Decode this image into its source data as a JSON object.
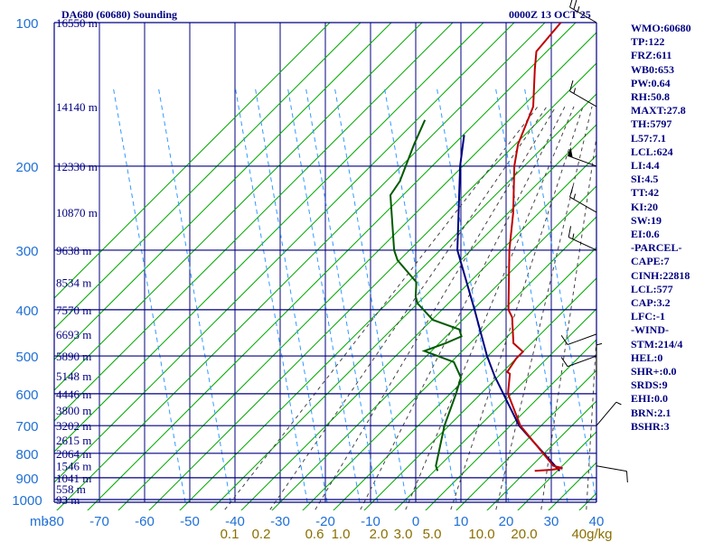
{
  "title_left": "DA680 (60680) Sounding",
  "title_right": "0000Z 13 OCT 25",
  "indices": [
    "WMO:60680",
    "TP:122",
    "FRZ:611",
    "WB0:653",
    "PW:0.64",
    "RH:50.8",
    "MAXT:27.8",
    "TH:5797",
    "L57:7.1",
    "LCL:624",
    "LI:4.4",
    "SI:4.5",
    "TT:42",
    "KI:20",
    "SW:19",
    "EI:0.6",
    "-PARCEL-",
    "CAPE:7",
    "CINH:22818",
    "LCL:577",
    "CAP:3.2",
    "LFC:-1",
    "-WIND-",
    "STM:214/4",
    "HEL:0",
    "SHR+:0.0",
    "SRDS:9",
    "EHI:0.0",
    "BRN:2.1",
    "BSHR:3"
  ],
  "colors": {
    "temperature": "#c00000",
    "dewpoint": "#005a00",
    "parcel": "#000080",
    "isobar": "#000080",
    "dry_adiabat": "#00aa00",
    "moist_adiabat": "#444444",
    "mixing_ratio": "#3399ff",
    "axis_text": "#1f6fd6",
    "mix_text": "#8b6f00"
  },
  "chart_data": {
    "type": "skew-t",
    "title": "DA680 (60680) Sounding",
    "xlabel": "mb",
    "pressure_levels": [
      100,
      200,
      300,
      400,
      500,
      600,
      700,
      800,
      900,
      1000
    ],
    "pressure_labels": [
      "100",
      "200",
      "300",
      "400",
      "500",
      "600",
      "700",
      "800",
      "900",
      "1000"
    ],
    "temperature_ticks": [
      -80,
      -70,
      -60,
      -50,
      -40,
      -30,
      -20,
      -10,
      0,
      10,
      20,
      30,
      40
    ],
    "temperature_tick_labels": [
      "-80",
      "-70",
      "-60",
      "-50",
      "-40",
      "-30",
      "-20",
      "-10",
      "0",
      "10",
      "20",
      "30",
      "40"
    ],
    "height_labels": [
      {
        "p": 100,
        "text": "16550 m"
      },
      {
        "p": 150,
        "text": "14140 m"
      },
      {
        "p": 200,
        "text": "12330 m"
      },
      {
        "p": 250,
        "text": "10870 m"
      },
      {
        "p": 300,
        "text": "9638 m"
      },
      {
        "p": 350,
        "text": "8534 m"
      },
      {
        "p": 400,
        "text": "7570 m"
      },
      {
        "p": 450,
        "text": "6693 m"
      },
      {
        "p": 500,
        "text": "5890 m"
      },
      {
        "p": 550,
        "text": "5148 m"
      },
      {
        "p": 600,
        "text": "4446 m"
      },
      {
        "p": 650,
        "text": "3800 m"
      },
      {
        "p": 700,
        "text": "3202 m"
      },
      {
        "p": 750,
        "text": "2615 m"
      },
      {
        "p": 800,
        "text": "2064 m"
      },
      {
        "p": 850,
        "text": "1546 m"
      },
      {
        "p": 900,
        "text": "1041 m"
      },
      {
        "p": 950,
        "text": "558 m"
      },
      {
        "p": 1000,
        "text": "93 m"
      }
    ],
    "mixing_ratio_labels": [
      "0.1",
      "0.2",
      "0.6",
      "1.0",
      "2.0",
      "3.0",
      "5.0",
      "10.0",
      "20.0",
      "40g/kg"
    ],
    "mixing_ratio_values": [
      0.1,
      0.2,
      0.6,
      1.0,
      2.0,
      3.0,
      5.0,
      10.0,
      20.0,
      40.0
    ],
    "temperature_profile": [
      {
        "p": 871,
        "t": 20.0
      },
      {
        "p": 866,
        "t": 23.5
      },
      {
        "p": 859,
        "t": 25.5
      },
      {
        "p": 850,
        "t": 23.0
      },
      {
        "p": 700,
        "t": 6.8
      },
      {
        "p": 600,
        "t": -3.0
      },
      {
        "p": 545,
        "t": -7.0
      },
      {
        "p": 540,
        "t": -8.0
      },
      {
        "p": 506,
        "t": -9.0
      },
      {
        "p": 490,
        "t": -9.0
      },
      {
        "p": 470,
        "t": -13.0
      },
      {
        "p": 415,
        "t": -19.0
      },
      {
        "p": 400,
        "t": -21.5
      },
      {
        "p": 300,
        "t": -34.5
      },
      {
        "p": 250,
        "t": -42.0
      },
      {
        "p": 200,
        "t": -52.0
      },
      {
        "p": 180,
        "t": -56.0
      },
      {
        "p": 150,
        "t": -61.0
      },
      {
        "p": 125,
        "t": -69.0
      },
      {
        "p": 115,
        "t": -72.5
      },
      {
        "p": 100,
        "t": -73.5
      }
    ],
    "dewpoint_profile": [
      {
        "p": 871,
        "t": -1.5
      },
      {
        "p": 850,
        "t": -3.0
      },
      {
        "p": 700,
        "t": -10.0
      },
      {
        "p": 600,
        "t": -14.5
      },
      {
        "p": 555,
        "t": -17.0
      },
      {
        "p": 515,
        "t": -22.0
      },
      {
        "p": 488,
        "t": -31.0
      },
      {
        "p": 470,
        "t": -28.0
      },
      {
        "p": 455,
        "t": -26.0
      },
      {
        "p": 440,
        "t": -28.0
      },
      {
        "p": 420,
        "t": -36.0
      },
      {
        "p": 388,
        "t": -43.0
      },
      {
        "p": 375,
        "t": -45.0
      },
      {
        "p": 350,
        "t": -48.0
      },
      {
        "p": 315,
        "t": -57.0
      },
      {
        "p": 300,
        "t": -60.0
      },
      {
        "p": 230,
        "t": -73.0
      },
      {
        "p": 215,
        "t": -74.0
      },
      {
        "p": 180,
        "t": -79.0
      },
      {
        "p": 160,
        "t": -82.0
      }
    ],
    "parcel_profile": [
      {
        "p": 871,
        "t": 25.5
      },
      {
        "p": 700,
        "t": 6.5
      },
      {
        "p": 550,
        "t": -10.0
      },
      {
        "p": 500,
        "t": -16.0
      },
      {
        "p": 400,
        "t": -29.0
      },
      {
        "p": 300,
        "t": -46.0
      },
      {
        "p": 200,
        "t": -64.0
      },
      {
        "p": 172,
        "t": -70.0
      }
    ],
    "wind_barbs": [
      {
        "p": 100,
        "dir": 300,
        "spd": 25
      },
      {
        "p": 150,
        "dir": 300,
        "spd": 15
      },
      {
        "p": 200,
        "dir": 290,
        "spd": 50
      },
      {
        "p": 250,
        "dir": 300,
        "spd": 15
      },
      {
        "p": 300,
        "dir": 295,
        "spd": 15
      },
      {
        "p": 450,
        "dir": 250,
        "spd": 10
      },
      {
        "p": 500,
        "dir": 250,
        "spd": 10
      },
      {
        "p": 550,
        "dir": 360,
        "spd": 5
      },
      {
        "p": 700,
        "dir": 40,
        "spd": 5
      },
      {
        "p": 850,
        "dir": 100,
        "spd": 10
      }
    ]
  }
}
